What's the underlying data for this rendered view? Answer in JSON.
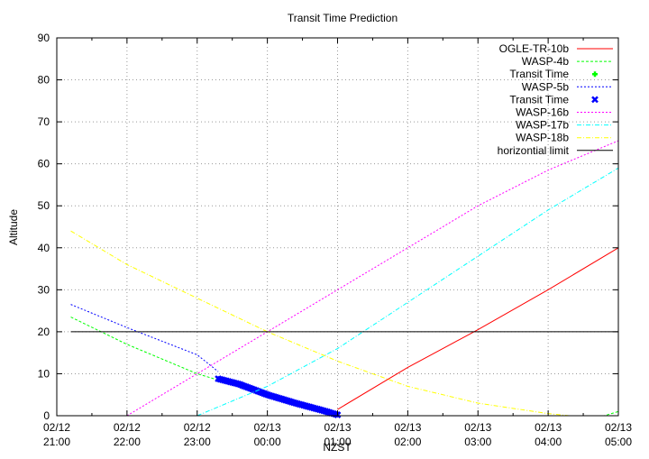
{
  "chart_data": {
    "type": "line",
    "title": "Transit Time Prediction",
    "xlabel": "NZST",
    "ylabel": "Altitude",
    "ylim": [
      0,
      90
    ],
    "yticks": [
      0,
      10,
      20,
      30,
      40,
      50,
      60,
      70,
      80,
      90
    ],
    "xticks": [
      {
        "date": "02/12",
        "time": "21:00",
        "h": 0
      },
      {
        "date": "02/12",
        "time": "22:00",
        "h": 1
      },
      {
        "date": "02/12",
        "time": "23:00",
        "h": 2
      },
      {
        "date": "02/13",
        "time": "00:00",
        "h": 3
      },
      {
        "date": "02/13",
        "time": "01:00",
        "h": 4
      },
      {
        "date": "02/13",
        "time": "02:00",
        "h": 5
      },
      {
        "date": "02/13",
        "time": "03:00",
        "h": 6
      },
      {
        "date": "02/13",
        "time": "04:00",
        "h": 7
      },
      {
        "date": "02/13",
        "time": "05:00",
        "h": 8
      }
    ],
    "grid": true,
    "legend_position": "top-right",
    "series": [
      {
        "name": "OGLE-TR-10b",
        "color": "#ff0000",
        "style": "solid",
        "points": [
          [
            4.0,
            1.5
          ],
          [
            5.0,
            11.5
          ],
          [
            6.0,
            20.5
          ],
          [
            7.0,
            30
          ],
          [
            8.0,
            40
          ]
        ]
      },
      {
        "name": "WASP-4b",
        "color": "#00ff00",
        "style": "dashed",
        "points": [
          [
            0.2,
            23.5
          ],
          [
            1.0,
            17
          ],
          [
            2.0,
            10
          ],
          [
            3.0,
            5
          ],
          [
            4.0,
            0
          ],
          [
            7.8,
            0
          ],
          [
            8.0,
            1
          ]
        ]
      },
      {
        "name": "Transit Time",
        "color": "#00ff00",
        "style": "marker-plus",
        "points": []
      },
      {
        "name": "WASP-5b",
        "color": "#0000ff",
        "style": "dotted",
        "points": [
          [
            0.2,
            26.5
          ],
          [
            1.0,
            21
          ],
          [
            2.0,
            14.5
          ],
          [
            2.3,
            10.5
          ]
        ]
      },
      {
        "name": "Transit Time",
        "color": "#0000ff",
        "style": "marker-x",
        "points": [
          [
            2.3,
            8.8
          ],
          [
            2.6,
            7.5
          ],
          [
            3.0,
            5
          ],
          [
            3.4,
            3
          ],
          [
            3.8,
            1.2
          ],
          [
            4.0,
            0.2
          ]
        ]
      },
      {
        "name": "WASP-16b",
        "color": "#ff00ff",
        "style": "dotted",
        "points": [
          [
            1.0,
            0
          ],
          [
            2.0,
            10
          ],
          [
            3.0,
            20
          ],
          [
            4.0,
            30
          ],
          [
            5.0,
            40
          ],
          [
            6.0,
            50
          ],
          [
            7.0,
            58.5
          ],
          [
            8.0,
            65.5
          ]
        ]
      },
      {
        "name": "WASP-17b",
        "color": "#00ffff",
        "style": "dash-dot",
        "points": [
          [
            2.0,
            0
          ],
          [
            3.0,
            7
          ],
          [
            4.0,
            16
          ],
          [
            5.0,
            27
          ],
          [
            6.0,
            38
          ],
          [
            7.0,
            49
          ],
          [
            8.0,
            59
          ]
        ]
      },
      {
        "name": "WASP-18b",
        "color": "#ffff00",
        "style": "dash-dot",
        "points": [
          [
            0.2,
            44
          ],
          [
            1.0,
            36
          ],
          [
            2.0,
            28
          ],
          [
            3.0,
            20
          ],
          [
            4.0,
            13
          ],
          [
            5.0,
            7
          ],
          [
            6.0,
            3
          ],
          [
            7.0,
            0.5
          ],
          [
            7.3,
            0
          ]
        ]
      },
      {
        "name": "horizontial limit",
        "color": "#000000",
        "style": "solid",
        "points": [
          [
            0.2,
            20
          ],
          [
            8.0,
            20
          ]
        ]
      }
    ]
  }
}
